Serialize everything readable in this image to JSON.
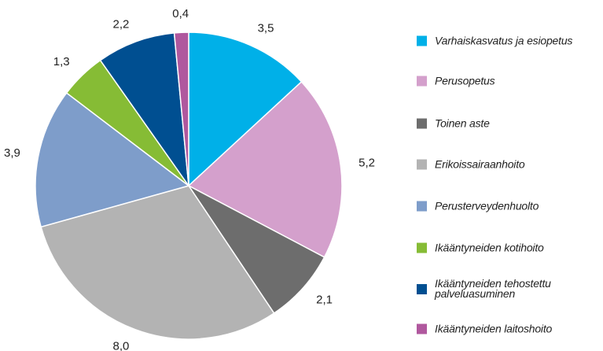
{
  "chart_data": {
    "type": "pie",
    "categories": [
      "Varhaiskasvatus ja esiopetus",
      "Perusopetus",
      "Toinen aste",
      "Erikoissairaanhoito",
      "Perusterveydenhuolto",
      "Ikääntyneiden kotihoito",
      "Ikääntyneiden tehostettu palveluasuminen",
      "Ikääntyneiden laitoshoito"
    ],
    "values": [
      3.5,
      5.2,
      2.1,
      8.0,
      3.9,
      1.3,
      2.2,
      0.4
    ],
    "value_labels": [
      "3,5",
      "5,2",
      "2,1",
      "8,0",
      "3,9",
      "1,3",
      "2,2",
      "0,4"
    ],
    "colors": [
      "#00b0e8",
      "#d4a0cc",
      "#6d6d6d",
      "#b3b3b3",
      "#7e9dca",
      "#86bc35",
      "#004f91",
      "#b0589e"
    ],
    "legend": "right"
  }
}
